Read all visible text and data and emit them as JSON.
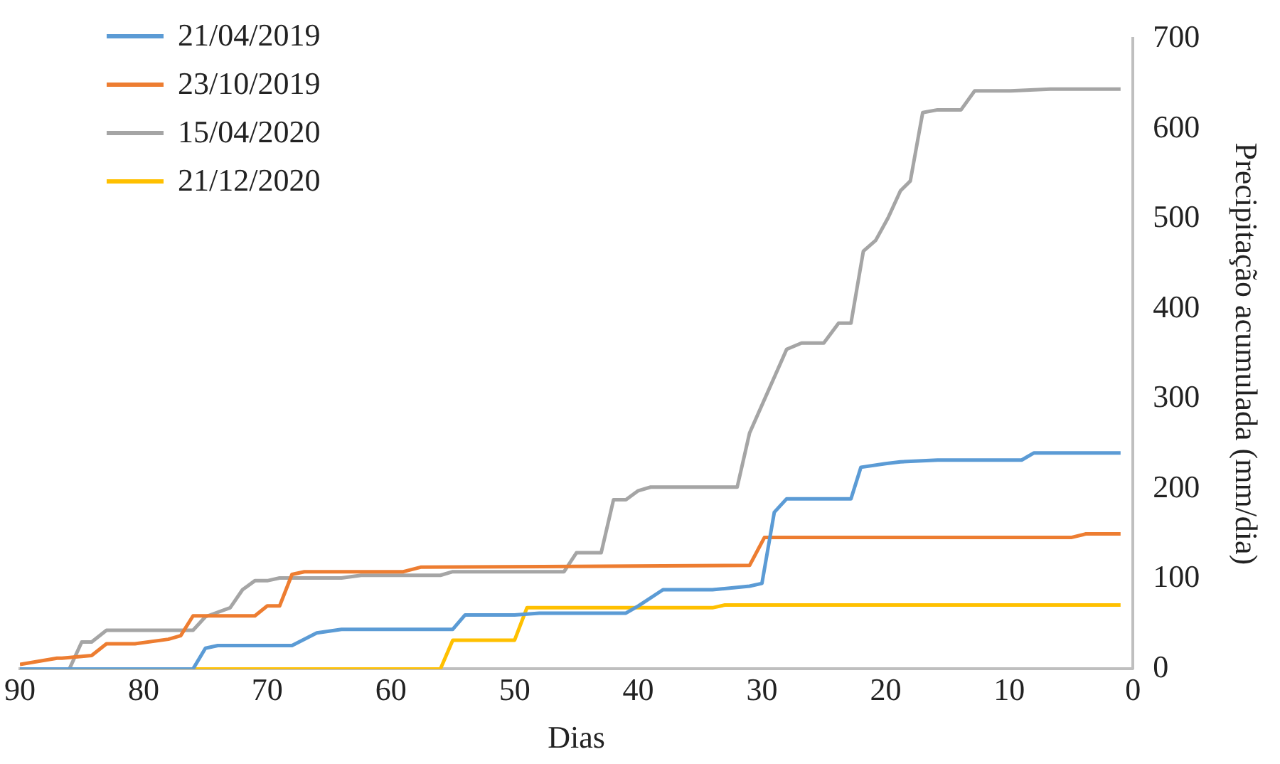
{
  "chart_data": {
    "type": "line",
    "xlabel": "Dias",
    "ylabel": "Precipitação acumulada (mm/dia)",
    "xlim": [
      90,
      0
    ],
    "xticks": [
      90,
      80,
      70,
      60,
      50,
      40,
      30,
      20,
      10,
      0
    ],
    "ylim": [
      0,
      700
    ],
    "yticks": [
      0,
      100,
      200,
      300,
      400,
      500,
      600,
      700
    ],
    "grid": false,
    "legend": "top left",
    "marker": "none",
    "line_style": "solid",
    "series": [
      {
        "name": "21/04/2019",
        "color": "#5b9bd5",
        "x": [
          90,
          76,
          75,
          74,
          68,
          66,
          65,
          64,
          55,
          54,
          50,
          48,
          41,
          40,
          38,
          34,
          31,
          30,
          29,
          28,
          22.8,
          22,
          20,
          18.8,
          15.8,
          9,
          8,
          1
        ],
        "values": [
          0,
          0,
          23,
          26,
          26,
          40,
          42,
          44,
          44,
          60,
          60,
          62,
          62,
          70,
          88,
          88,
          92,
          95,
          174,
          189,
          189,
          224,
          228,
          230,
          232,
          232,
          240,
          240
        ]
      },
      {
        "name": "23/10/2019",
        "color": "#ed7d31",
        "x": [
          90,
          87,
          86.6,
          84.2,
          83,
          80.7,
          78,
          77,
          76,
          71,
          70,
          69,
          68,
          67,
          59,
          57.6,
          31,
          29.8,
          5,
          3.8,
          1
        ],
        "values": [
          5,
          12,
          12,
          15,
          28,
          28,
          33,
          37,
          59,
          59,
          70,
          70,
          105,
          108,
          108,
          113,
          115,
          146,
          146,
          150,
          150
        ]
      },
      {
        "name": "15/04/2020",
        "color": "#a5a5a5",
        "x": [
          90,
          86,
          85,
          84.2,
          83,
          76,
          75,
          73,
          72,
          71,
          70,
          69,
          64,
          62.4,
          56,
          55,
          46,
          45,
          43,
          42,
          41,
          40,
          39,
          32,
          31,
          28,
          26.8,
          25,
          23.8,
          22.8,
          21.8,
          20.8,
          19.8,
          18.8,
          18,
          17,
          15.8,
          13.9,
          12.8,
          9.9,
          6.7,
          1
        ],
        "values": [
          0,
          0,
          30,
          30,
          43,
          43,
          58,
          68,
          88,
          98,
          98,
          101,
          101,
          104,
          104,
          108,
          108,
          129,
          129,
          188,
          188,
          198,
          202,
          202,
          262,
          355,
          362,
          362,
          384,
          384,
          464,
          476,
          501,
          531,
          542,
          618,
          621,
          621,
          642,
          642,
          644,
          644
        ]
      },
      {
        "name": "21/12/2020",
        "color": "#ffc000",
        "x": [
          90,
          56,
          55,
          50,
          49,
          34,
          33,
          1
        ],
        "values": [
          0,
          0,
          32,
          32,
          68,
          68,
          71,
          71
        ]
      }
    ]
  }
}
